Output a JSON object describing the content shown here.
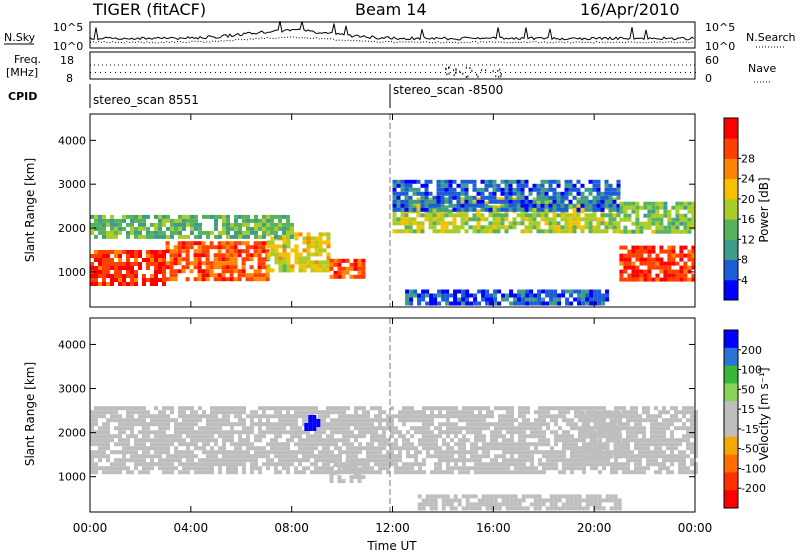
{
  "header": {
    "title": "TIGER (fitACF)",
    "beam": "Beam 14",
    "date": "16/Apr/2010"
  },
  "top_panel": {
    "left_label": "N.Sky",
    "right_label": "N.Search",
    "left_ticks": [
      "10^5",
      "10^0"
    ],
    "right_ticks": [
      "10^5",
      "10^0"
    ]
  },
  "freq_panel": {
    "left_label_1": "Freq.",
    "left_label_2": "[MHz]",
    "right_label": "Nave",
    "left_ticks": [
      "18",
      "8"
    ],
    "right_ticks": [
      "60",
      "0"
    ]
  },
  "cpid": {
    "label": "CPID",
    "program_1": "stereo_scan 8551",
    "program_2": "stereo_scan -8500"
  },
  "x_axis": {
    "label": "Time UT",
    "ticks": [
      "00:00",
      "04:00",
      "08:00",
      "12:00",
      "16:00",
      "20:00",
      "00:00"
    ]
  },
  "colors": {
    "power_scale": [
      "#0000ff",
      "#1d5ed6",
      "#3f9c8a",
      "#56b35b",
      "#a9cc28",
      "#f6c100",
      "#ff8400",
      "#ff4000",
      "#ff0000"
    ],
    "velocity_scale": [
      "#0000ff",
      "#2b73d6",
      "#38b63a",
      "#8ad35b",
      "#bebebe",
      "#bebebe",
      "#f5a800",
      "#ff7000",
      "#ff3000",
      "#ff0000"
    ]
  },
  "chart_data": [
    {
      "type": "heatmap",
      "name": "power",
      "ylabel": "Slant Range [km]",
      "yticks": [
        "1000",
        "2000",
        "3000",
        "4000"
      ],
      "ylim": [
        200,
        4600
      ],
      "xlim": [
        0,
        24
      ],
      "colorbar": {
        "label": "Power [dB]",
        "ticks": [
          "4",
          "8",
          "12",
          "16",
          "20",
          "24",
          "28"
        ],
        "range": [
          0,
          32
        ]
      },
      "regions": [
        {
          "t": [
            0,
            3
          ],
          "r": [
            700,
            1500
          ],
          "level": 28
        },
        {
          "t": [
            3,
            7
          ],
          "r": [
            850,
            1700
          ],
          "level": 26
        },
        {
          "t": [
            7,
            9.5
          ],
          "r": [
            1050,
            1900
          ],
          "level": 18
        },
        {
          "t": [
            9.5,
            10.8
          ],
          "r": [
            900,
            1300
          ],
          "level": 26
        },
        {
          "t": [
            0,
            8
          ],
          "r": [
            1800,
            2300
          ],
          "level": 12
        },
        {
          "t": [
            12,
            21
          ],
          "r": [
            1950,
            2700
          ],
          "level": 16
        },
        {
          "t": [
            12,
            21
          ],
          "r": [
            2450,
            3100
          ],
          "level": 6
        },
        {
          "t": [
            21,
            24
          ],
          "r": [
            800,
            1600
          ],
          "level": 28
        },
        {
          "t": [
            21,
            24
          ],
          "r": [
            1900,
            2600
          ],
          "level": 14
        },
        {
          "t": [
            12.5,
            20.5
          ],
          "r": [
            300,
            600
          ],
          "level": 5
        }
      ]
    },
    {
      "type": "heatmap",
      "name": "velocity",
      "ylabel": "Slant Range [km]",
      "yticks": [
        "1000",
        "2000",
        "3000",
        "4000"
      ],
      "ylim": [
        200,
        4600
      ],
      "xlim": [
        0,
        24
      ],
      "colorbar": {
        "label": "Velocity [m s⁻¹]",
        "ticks": [
          "200",
          "100",
          "50",
          "15",
          "-15",
          "-50",
          "-100",
          "-200"
        ],
        "range": [
          -250,
          250
        ]
      },
      "regions": [
        {
          "t": [
            0,
            24
          ],
          "r": [
            1100,
            2600
          ],
          "level": 0
        },
        {
          "t": [
            8.5,
            9
          ],
          "r": [
            2100,
            2400
          ],
          "level": 220
        },
        {
          "t": [
            9.5,
            10.8
          ],
          "r": [
            900,
            1400
          ],
          "level": 40
        },
        {
          "t": [
            13,
            21
          ],
          "r": [
            250,
            600
          ],
          "level": -40
        },
        {
          "t": [
            19.5,
            21
          ],
          "r": [
            1500,
            2500
          ],
          "level": 40
        }
      ]
    }
  ]
}
